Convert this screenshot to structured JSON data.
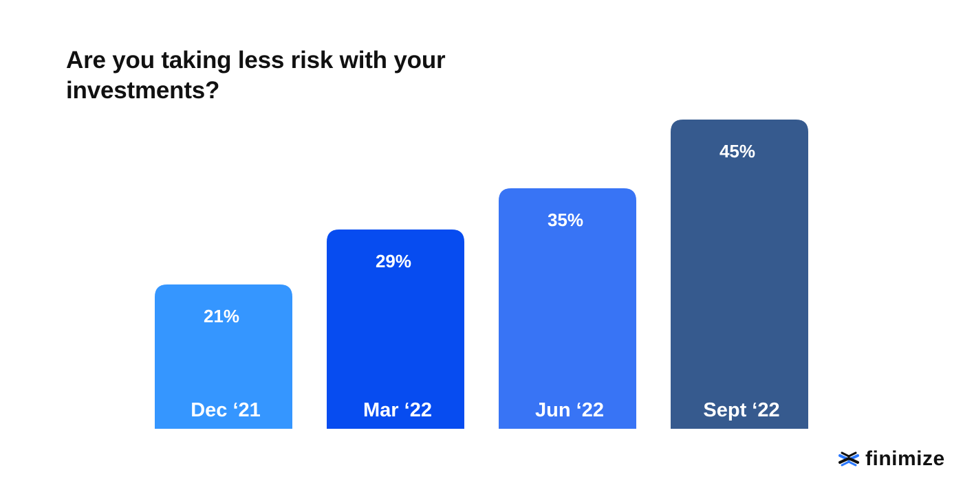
{
  "chart_data": {
    "type": "bar",
    "title": "Are you taking less risk with your investments?",
    "categories": [
      "Dec ‘21",
      "Mar ‘22",
      "Jun ‘22",
      "Sept ‘22"
    ],
    "values": [
      21,
      29,
      35,
      45
    ],
    "value_labels": [
      "21%",
      "29%",
      "35%",
      "45%"
    ],
    "unit": "%",
    "bar_colors": [
      "#3596ff",
      "#074cf0",
      "#3874f5",
      "#365a8e"
    ],
    "label_color": "#ffffff",
    "ylim": [
      0,
      45
    ],
    "grid": false,
    "legend": "none"
  },
  "brand": {
    "name": "finimize",
    "icon": "finimize-logo-icon"
  },
  "colors": {
    "background": "#ffffff",
    "title": "#111111"
  }
}
